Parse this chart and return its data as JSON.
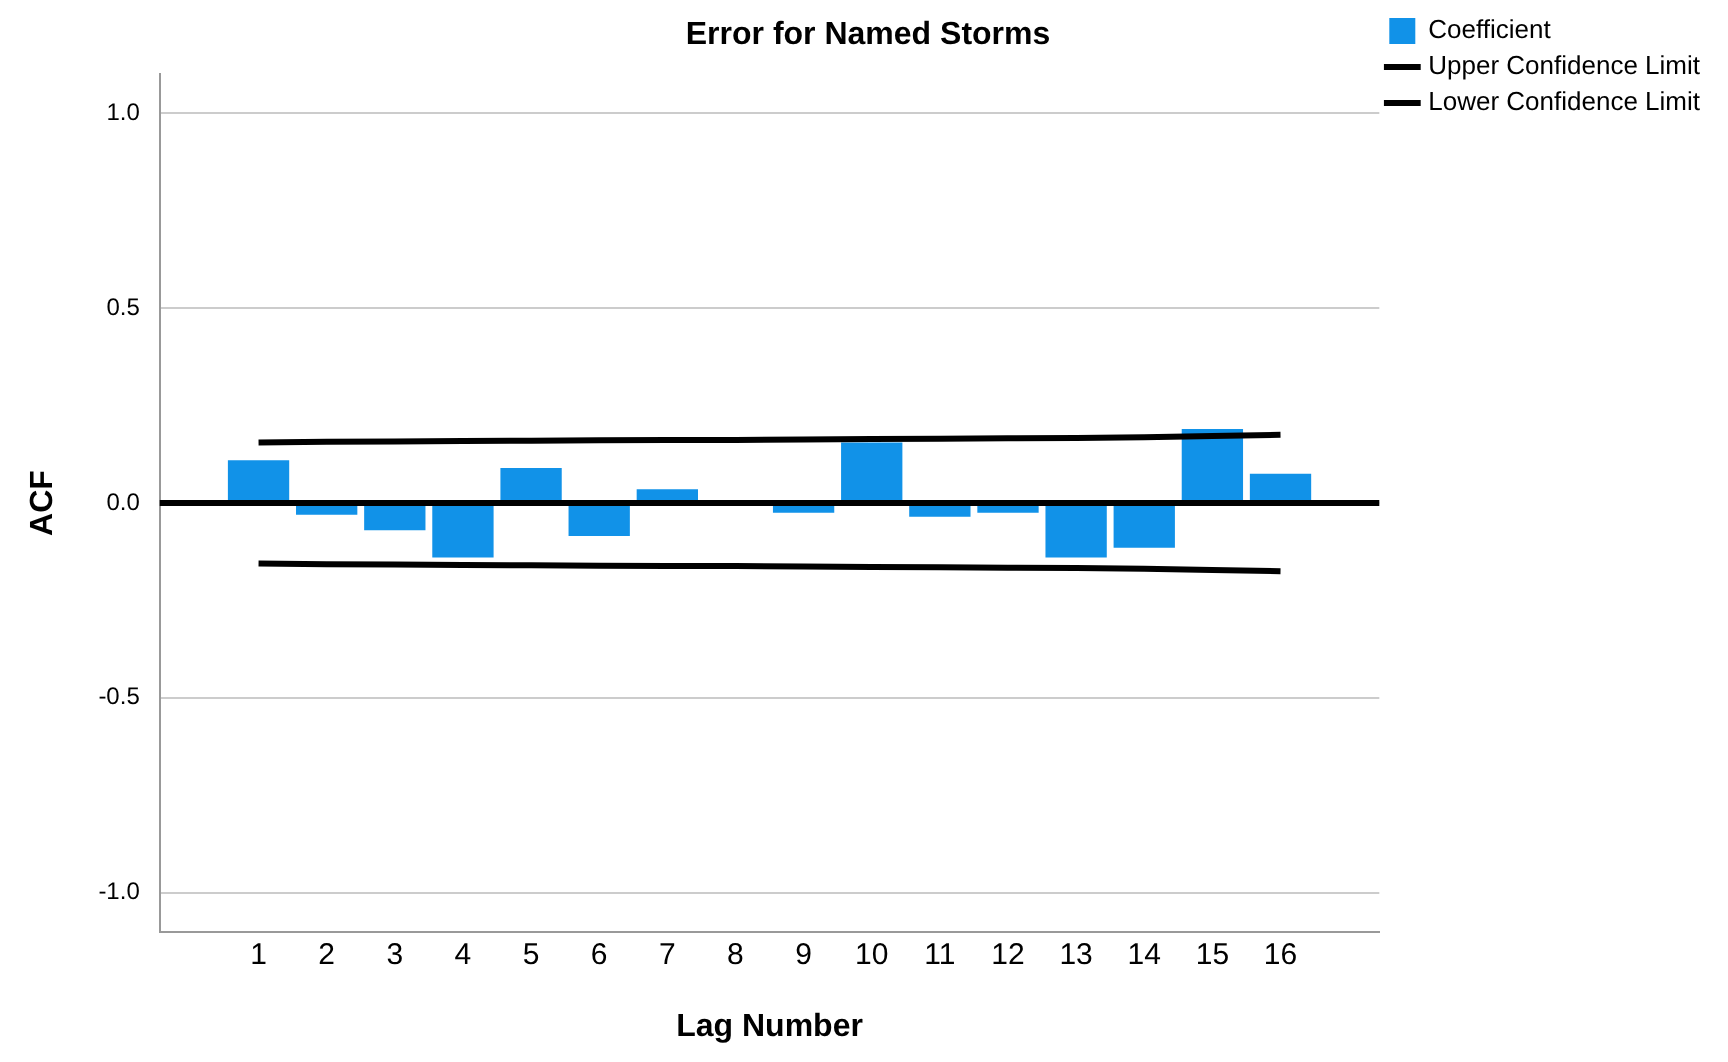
{
  "chart_data": {
    "type": "bar",
    "title": "Error for Named Storms",
    "xlabel": "Lag Number",
    "ylabel": "ACF",
    "x": [
      1,
      2,
      3,
      4,
      5,
      6,
      7,
      8,
      9,
      10,
      11,
      12,
      13,
      14,
      15,
      16
    ],
    "series": [
      {
        "name": "Coefficient",
        "color": "#1192e8",
        "values": [
          0.11,
          -0.03,
          -0.07,
          -0.14,
          0.09,
          -0.085,
          0.035,
          0.0,
          -0.025,
          0.155,
          -0.035,
          -0.025,
          -0.14,
          -0.115,
          0.19,
          0.075
        ]
      },
      {
        "name": "Upper Confidence Limit",
        "type": "line",
        "color": "#000000",
        "values": [
          0.155,
          0.157,
          0.158,
          0.159,
          0.16,
          0.161,
          0.162,
          0.162,
          0.163,
          0.164,
          0.165,
          0.166,
          0.167,
          0.169,
          0.172,
          0.175
        ]
      },
      {
        "name": "Lower Confidence Limit",
        "type": "line",
        "color": "#000000",
        "values": [
          -0.155,
          -0.157,
          -0.158,
          -0.159,
          -0.16,
          -0.161,
          -0.162,
          -0.162,
          -0.163,
          -0.164,
          -0.165,
          -0.166,
          -0.167,
          -0.169,
          -0.172,
          -0.175
        ]
      }
    ],
    "xlim": [
      -0.45,
      17.45
    ],
    "xticks": [
      1,
      2,
      3,
      4,
      5,
      6,
      7,
      8,
      9,
      10,
      11,
      12,
      13,
      14,
      15,
      16
    ],
    "ylim": [
      -1.1,
      1.1
    ],
    "yticks": [
      {
        "value": -1,
        "label": "-1.0"
      },
      {
        "value": -0.5,
        "label": "-0.5"
      },
      {
        "value": 0,
        "label": "0.0"
      },
      {
        "value": 0.5,
        "label": "0.5"
      },
      {
        "value": 1,
        "label": "1.0"
      }
    ],
    "ref_lines": [
      {
        "axis": "y",
        "value": 0,
        "color": "#000000"
      }
    ],
    "grid": "y",
    "legend": "top right",
    "marker": "none",
    "line_style": "solid"
  }
}
